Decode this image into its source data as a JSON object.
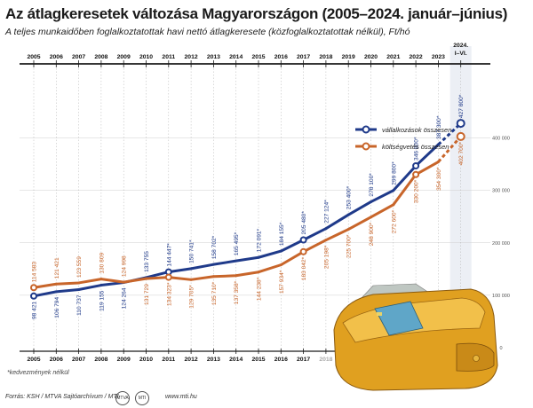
{
  "header": {
    "title": "Az átlagkeresetek változása Magyarországon (2005–2024. január–június)",
    "subtitle": "A teljes munkaidőben foglalkoztatottak havi nettó átlagkeresete (közfoglalkoztatottak nélkül), Ft/hó"
  },
  "note": "*kedvezmények nélkül",
  "footer": {
    "source": "Forrás: KSH / MTVA Sajtóarchívum / MTI",
    "logo1": "MTVA",
    "logo2": "MTI",
    "url": "www.mti.hu"
  },
  "colors": {
    "business": "#1f3a8a",
    "budget": "#c8652a",
    "header_line": "#1a1a1a",
    "grid": "#cfcfcf",
    "wallet": "#e0a020"
  },
  "chart_data": {
    "type": "line",
    "categories": [
      "2005",
      "2006",
      "2007",
      "2008",
      "2009",
      "2010",
      "2011",
      "2012",
      "2013",
      "2014",
      "2015",
      "2016",
      "2017",
      "2018",
      "2019",
      "2020",
      "2021",
      "2022",
      "2023",
      "2024. I–VI."
    ],
    "bottom_categories": [
      "2005",
      "2006",
      "2007",
      "2008",
      "2009",
      "2010",
      "2011",
      "2012",
      "2013",
      "2014",
      "2015",
      "2016",
      "2017",
      "2018",
      "2019"
    ],
    "series": [
      {
        "name": "vállalkozások összesen",
        "values": [
          98421,
          106794,
          110737,
          119155,
          124264,
          133755,
          144447,
          150741,
          158702,
          165495,
          172091,
          184155,
          205480,
          227124,
          253400,
          278100,
          299800,
          346800,
          387300,
          427800
        ],
        "labels": [
          "98 421",
          "106 794",
          "110 737",
          "119 155",
          "124 264",
          "133 755",
          "144 447*",
          "150 741*",
          "158 702*",
          "165 495*",
          "172 091*",
          "184 155*",
          "205 480*",
          "227 124*",
          "253 400*",
          "278 100*",
          "299 800*",
          "346 800*",
          "387 300*",
          "427 800*"
        ]
      },
      {
        "name": "költségvetés összesen",
        "values": [
          114583,
          121421,
          123559,
          130809,
          124998,
          131729,
          134323,
          129705,
          135710,
          137358,
          144238,
          157934,
          183042,
          205198,
          225700,
          248900,
          272600,
          330200,
          354300,
          402700
        ],
        "labels": [
          "114 583",
          "121 421",
          "123 559",
          "130 809",
          "124 998",
          "131 729",
          "134 323*",
          "129 705*",
          "135 710*",
          "137 358*",
          "144 238*",
          "157 934*",
          "183 042*",
          "205 198*",
          "225 700*",
          "248 900*",
          "272 600*",
          "330 200*",
          "354 300*",
          "402 700*"
        ]
      }
    ],
    "yticks": [
      "400 000",
      "300 000",
      "200 000",
      "100 000",
      "0"
    ],
    "ytick_values": [
      400000,
      300000,
      200000,
      100000,
      0
    ],
    "ylim": [
      0,
      430000
    ],
    "legend": "top-right",
    "grid": true
  }
}
